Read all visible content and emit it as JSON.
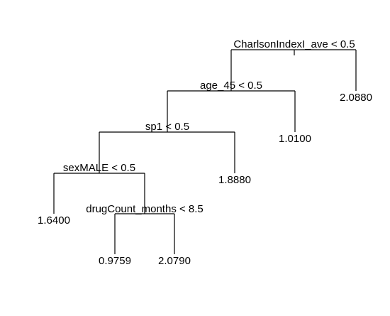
{
  "tree": {
    "splits": [
      "CharlsonIndexI_ave < 0.5",
      "age_45 < 0.5",
      "sp1 < 0.5",
      "sexMALE < 0.5",
      "drugCount_months < 8.5"
    ],
    "leaves": [
      "2.0880",
      "1.0100",
      "1.8880",
      "1.6400",
      "0.9759",
      "2.0790"
    ]
  }
}
